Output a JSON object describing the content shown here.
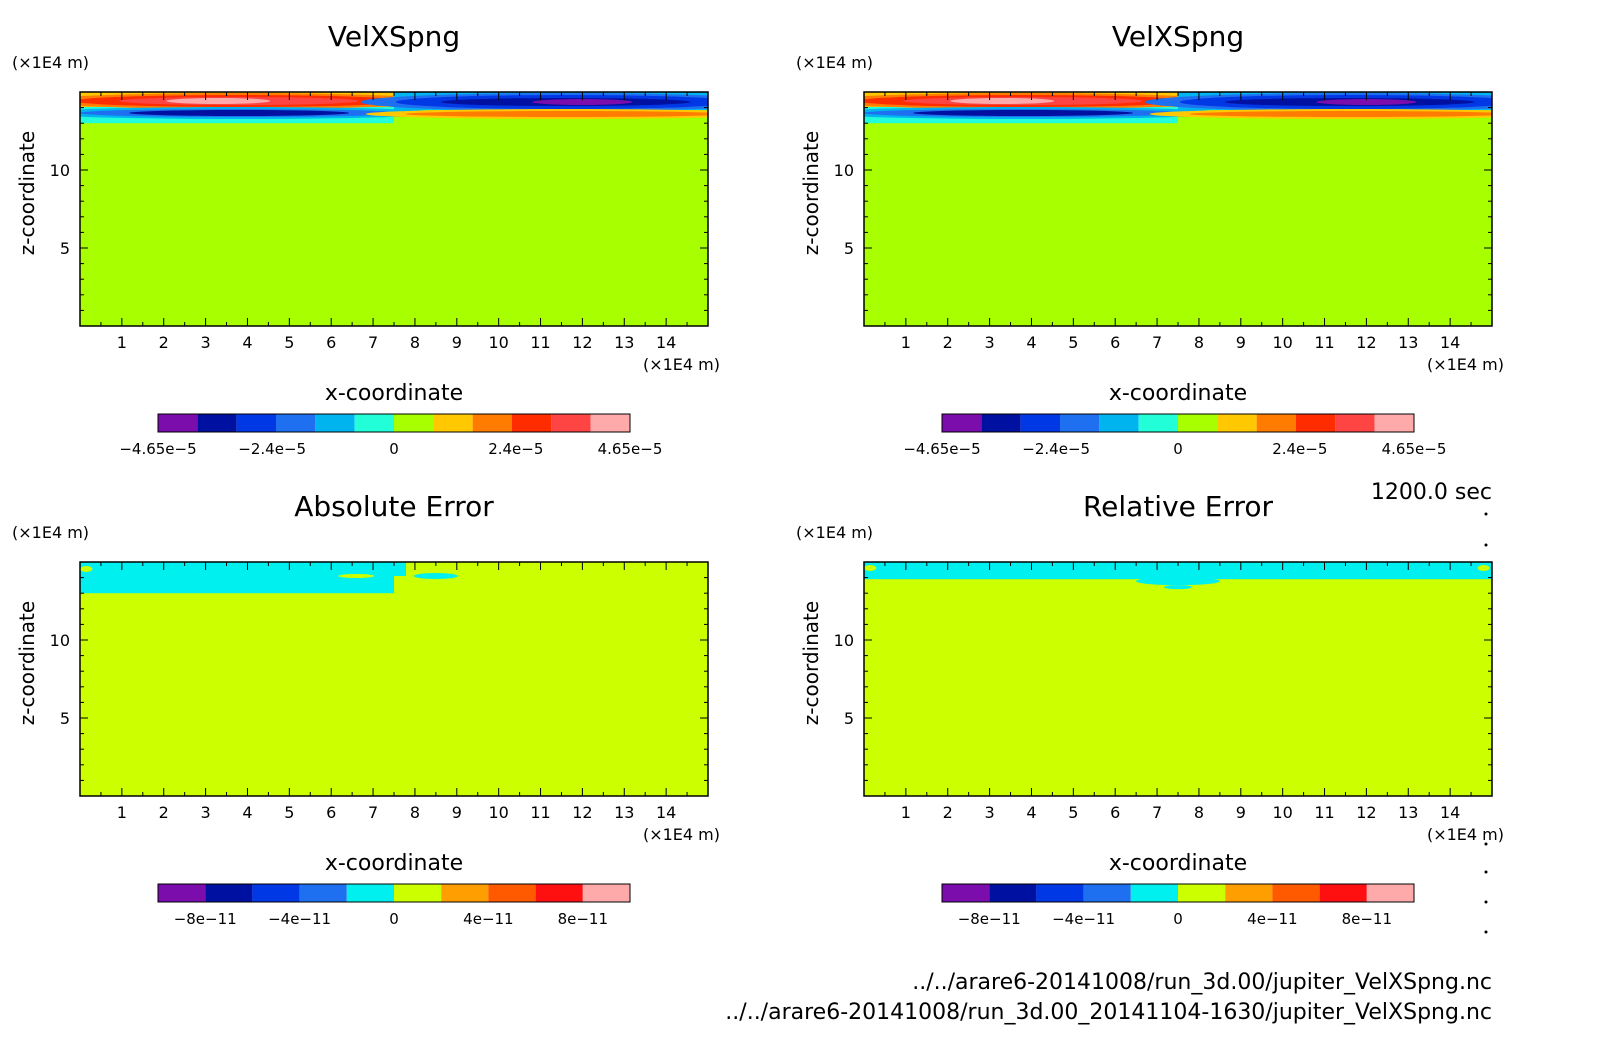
{
  "time_label": "1200.0 sec",
  "files": [
    "../../arare6-20141008/run_3d.00/jupiter_VelXSpng.nc",
    "../../arare6-20141008/run_3d.00_20141104-1630/jupiter_VelXSpng.nc"
  ],
  "chart_data": [
    {
      "type": "heatmap",
      "title": "VelXSpng",
      "xlabel": "x-coordinate",
      "ylabel": "z-coordinate",
      "x_unit": "(×1E4 m)",
      "y_unit": "(×1E4 m)",
      "xlim": [
        0,
        15
      ],
      "ylim": [
        0,
        15
      ],
      "xticks": [
        1,
        2,
        3,
        4,
        5,
        6,
        7,
        8,
        9,
        10,
        11,
        12,
        13,
        14
      ],
      "yticks": [
        5,
        10
      ],
      "colorbar": {
        "colors": [
          "#7a0dac",
          "#0010a0",
          "#0038e6",
          "#1e70f0",
          "#00b4f0",
          "#22ffd8",
          "#a8ff00",
          "#ffc800",
          "#ff7c00",
          "#ff2c00",
          "#ff4444",
          "#ffaaaa"
        ],
        "tick_labels": [
          "-4.65e-5",
          "-2.4e-5",
          "0",
          "2.4e-5",
          "4.65e-5"
        ],
        "tick_values": [
          -4.65e-05,
          -2.4e-05,
          0,
          2.4e-05,
          4.65e-05
        ],
        "range": [
          -4.65e-05,
          4.65e-05
        ]
      },
      "background_color": "#a8ff00",
      "sponge_layer_z": [
        13,
        15
      ]
    },
    {
      "type": "heatmap",
      "title": "VelXSpng",
      "xlabel": "x-coordinate",
      "ylabel": "z-coordinate",
      "x_unit": "(×1E4 m)",
      "y_unit": "(×1E4 m)",
      "xlim": [
        0,
        15
      ],
      "ylim": [
        0,
        15
      ],
      "xticks": [
        1,
        2,
        3,
        4,
        5,
        6,
        7,
        8,
        9,
        10,
        11,
        12,
        13,
        14
      ],
      "yticks": [
        5,
        10
      ],
      "colorbar": {
        "colors": [
          "#7a0dac",
          "#0010a0",
          "#0038e6",
          "#1e70f0",
          "#00b4f0",
          "#22ffd8",
          "#a8ff00",
          "#ffc800",
          "#ff7c00",
          "#ff2c00",
          "#ff4444",
          "#ffaaaa"
        ],
        "tick_labels": [
          "-4.65e-5",
          "-2.4e-5",
          "0",
          "2.4e-5",
          "4.65e-5"
        ],
        "tick_values": [
          -4.65e-05,
          -2.4e-05,
          0,
          2.4e-05,
          4.65e-05
        ],
        "range": [
          -4.65e-05,
          4.65e-05
        ]
      },
      "background_color": "#a8ff00",
      "sponge_layer_z": [
        13,
        15
      ]
    },
    {
      "type": "heatmap",
      "title": "Absolute Error",
      "xlabel": "x-coordinate",
      "ylabel": "z-coordinate",
      "x_unit": "(×1E4 m)",
      "y_unit": "(×1E4 m)",
      "xlim": [
        0,
        15
      ],
      "ylim": [
        0,
        15
      ],
      "xticks": [
        1,
        2,
        3,
        4,
        5,
        6,
        7,
        8,
        9,
        10,
        11,
        12,
        13,
        14
      ],
      "yticks": [
        5,
        10
      ],
      "colorbar": {
        "colors": [
          "#7a0dac",
          "#0010a0",
          "#0038e6",
          "#1e70f0",
          "#00f0f0",
          "#ccff00",
          "#ff9e00",
          "#ff5a00",
          "#ff1010",
          "#ffaaaa"
        ],
        "tick_labels": [
          "-8e-11",
          "-4e-11",
          "0",
          "4e-11",
          "8e-11"
        ],
        "tick_values": [
          -8e-11,
          -4e-11,
          0,
          4e-11,
          8e-11
        ],
        "range": [
          -1e-10,
          1e-10
        ]
      },
      "background_color": "#ccff00",
      "error_band_z": [
        13,
        15
      ]
    },
    {
      "type": "heatmap",
      "title": "Relative Error",
      "xlabel": "x-coordinate",
      "ylabel": "z-coordinate",
      "x_unit": "(×1E4 m)",
      "y_unit": "(×1E4 m)",
      "xlim": [
        0,
        15
      ],
      "ylim": [
        0,
        15
      ],
      "xticks": [
        1,
        2,
        3,
        4,
        5,
        6,
        7,
        8,
        9,
        10,
        11,
        12,
        13,
        14
      ],
      "yticks": [
        5,
        10
      ],
      "colorbar": {
        "colors": [
          "#7a0dac",
          "#0010a0",
          "#0038e6",
          "#1e70f0",
          "#00f0f0",
          "#ccff00",
          "#ff9e00",
          "#ff5a00",
          "#ff1010",
          "#ffaaaa"
        ],
        "tick_labels": [
          "-8e-11",
          "-4e-11",
          "0",
          "4e-11",
          "8e-11"
        ],
        "tick_values": [
          -8e-11,
          -4e-11,
          0,
          4e-11,
          8e-11
        ],
        "range": [
          -1e-10,
          1e-10
        ]
      },
      "background_color": "#ccff00",
      "error_band_z": [
        13.9,
        15
      ]
    }
  ]
}
